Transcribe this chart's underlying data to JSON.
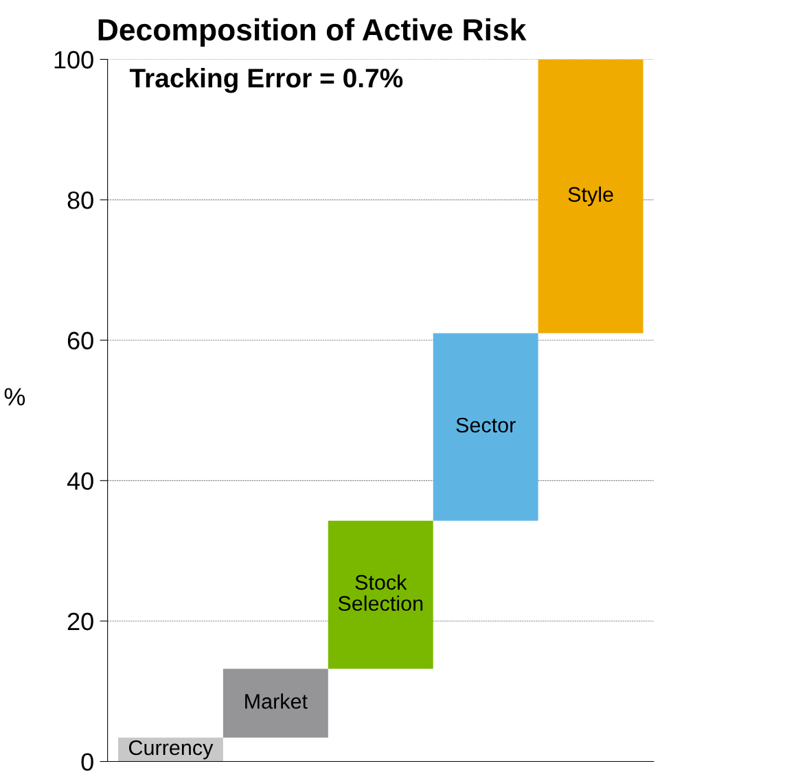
{
  "chart_data": {
    "type": "bar",
    "title": "Decomposition of Active Risk",
    "ylabel": "%",
    "categories": [
      "Currency",
      "Market",
      "Stock Selection",
      "Sector",
      "Style"
    ],
    "values": [
      3.4,
      9.8,
      21.1,
      26.7,
      39.0
    ],
    "base": [
      0,
      3.4,
      13.2,
      34.3,
      61.0
    ],
    "colors": [
      "#c8c8c8",
      "#959597",
      "#7ab800",
      "#5eb5e4",
      "#f0ab00"
    ],
    "ylim": [
      0,
      100
    ],
    "yticks": [
      0,
      20,
      40,
      60,
      80,
      100
    ],
    "grid": "y",
    "annotations": [
      "Tracking Error = 0.7%"
    ]
  }
}
